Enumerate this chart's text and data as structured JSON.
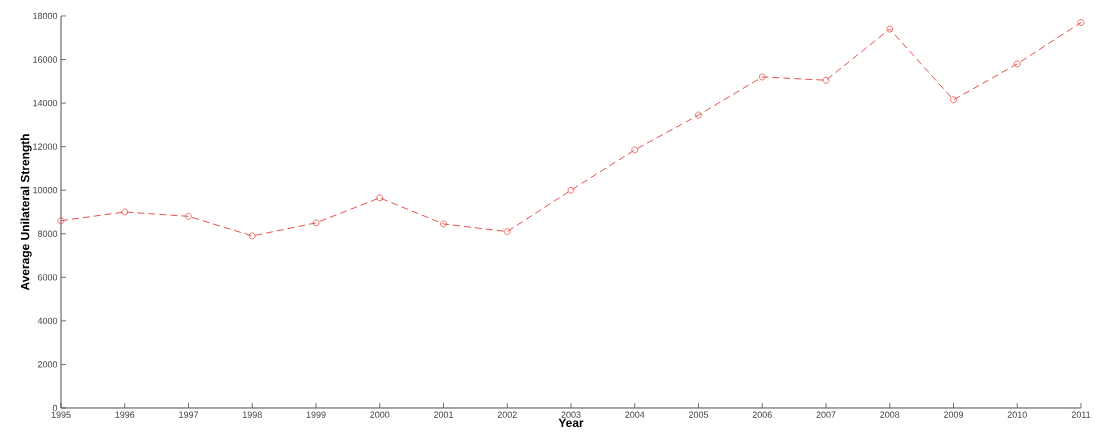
{
  "chart_data": {
    "type": "line",
    "xlabel": "Year",
    "ylabel": "Average Unilateral Strength",
    "x": [
      1995,
      1996,
      1997,
      1998,
      1999,
      2000,
      2001,
      2002,
      2003,
      2004,
      2005,
      2006,
      2007,
      2008,
      2009,
      2010,
      2011
    ],
    "series": [
      {
        "color": "#e8514a",
        "values": [
          8600,
          9000,
          8800,
          7900,
          8500,
          9650,
          8450,
          8100,
          10000,
          11850,
          13450,
          15200,
          15050,
          17400,
          14150,
          15800,
          17700
        ]
      }
    ],
    "xlim": [
      1995,
      2011
    ],
    "ylim": [
      0,
      18000
    ],
    "xticks": [
      1995,
      1996,
      1997,
      1998,
      1999,
      2000,
      2001,
      2002,
      2003,
      2004,
      2005,
      2006,
      2007,
      2008,
      2009,
      2010,
      2011
    ],
    "yticks": [
      0,
      2000,
      4000,
      6000,
      8000,
      10000,
      12000,
      14000,
      16000,
      18000
    ],
    "grid": false,
    "marker": "circle",
    "line_style": "dashed"
  }
}
